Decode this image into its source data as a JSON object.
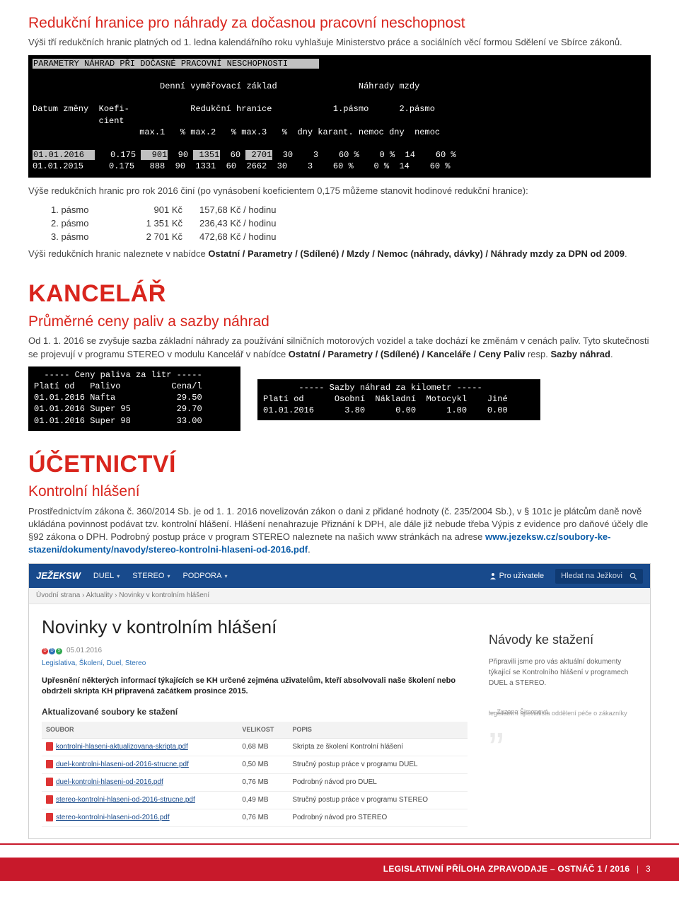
{
  "section1": {
    "heading": "Redukční hranice pro náhrady za dočasnou pracovní neschopnost",
    "intro": "Výši tří redukčních hranic platných od 1. ledna kalendářního roku vyhlašuje Ministerstvo práce a sociálních věcí formou Sdělení ve Sbírce zákonů.",
    "terminal": {
      "title": "PARAMETRY NÁHRAD PŘI DOČASNÉ PRACOVNÍ NESCHOPNOSTI",
      "group_left": "Denní vyměřovací základ",
      "group_right": "Náhrady mzdy",
      "h_datum": "Datum změny",
      "h_koef": "Koefi-\ncient",
      "h_reduk": "Redukční hranice",
      "h_p1": "1.pásmo",
      "h_p2": "2.pásmo",
      "sub_max1": "max.1",
      "sub_pct": "%",
      "sub_max2": "max.2",
      "sub_max3": "max.3",
      "sub_dnykar": "dny karant.",
      "sub_nemoc": "nemoc",
      "sub_dny": "dny",
      "rows": [
        {
          "date": "01.01.2016",
          "koef": "0.175",
          "m1": "901",
          "p1": "90",
          "m2": "1351",
          "p2": "60",
          "m3": "2701",
          "p3": "30",
          "dk": "3",
          "dkn": "60 %",
          "nm": "0 %",
          "dn": "14",
          "dnn": "60 %",
          "hl": true
        },
        {
          "date": "01.01.2015",
          "koef": "0.175",
          "m1": "888",
          "p1": "90",
          "m2": "1331",
          "p2": "60",
          "m3": "2662",
          "p3": "30",
          "dk": "3",
          "dkn": "60 %",
          "nm": "0 %",
          "dn": "14",
          "dnn": "60 %",
          "hl": false
        }
      ]
    },
    "after_term": "Výše redukčních hranic pro rok 2016 činí (po vynásobení koeficientem  0,175 můžeme stanovit hodinové redukční hranice):",
    "bands": [
      {
        "label": "1. pásmo",
        "amount": "901 Kč",
        "rate": "157,68 Kč / hodinu"
      },
      {
        "label": "2. pásmo",
        "amount": "1 351 Kč",
        "rate": "236,43 Kč / hodinu"
      },
      {
        "label": "3. pásmo",
        "amount": "2 701 Kč",
        "rate": "472,68 Kč / hodinu"
      }
    ],
    "closing_pre": "Výši redukčních hranic naleznete v nabídce ",
    "closing_bold": "Ostatní / Parametry / (Sdílené) / Mzdy / Nemoc (náhrady, dávky) / Náhrady mzdy za DPN od 2009",
    "closing_post": "."
  },
  "section2": {
    "title": "KANCELÁŘ",
    "subheading": "Průměrné ceny paliv a sazby náhrad",
    "p_pre": "Od 1. 1. 2016 se zvyšuje sazba základní náhrady za používání silničních motorových vozidel a take dochází ke změnám v cenách paliv. Tyto skutečnosti se projevují v programu STEREO v modulu Kancelář v nabídce ",
    "p_bold": "Ostatní / Parametry / (Sdílené) / Kanceláře / Ceny Paliv",
    "p_mid": " resp. ",
    "p_bold2": "Sazby náhrad",
    "p_post": ".",
    "fuel": {
      "title": "Ceny paliva za litr",
      "h1": "Platí od",
      "h2": "Palivo",
      "h3": "Cena/l",
      "rows": [
        {
          "d": "01.01.2016",
          "f": "Nafta",
          "c": "29.50"
        },
        {
          "d": "01.01.2016",
          "f": "Super 95",
          "c": "29.70"
        },
        {
          "d": "01.01.2016",
          "f": "Super 98",
          "c": "33.00"
        }
      ]
    },
    "rates": {
      "title": "Sazby náhrad za kilometr",
      "h1": "Platí od",
      "h2": "Osobní",
      "h3": "Nákladní",
      "h4": "Motocykl",
      "h5": "Jiné",
      "row": {
        "d": "01.01.2016",
        "os": "3.80",
        "na": "0.00",
        "mo": "1.00",
        "ji": "0.00"
      }
    }
  },
  "section3": {
    "title": "ÚČETNICTVÍ",
    "subheading": "Kontrolní hlášení",
    "p_pre": "Prostřednictvím zákona č. 360/2014 Sb. je od 1. 1. 2016 novelizován zákon o dani z přidané hodnoty (č. 235/2004 Sb.), v § 101c je plátcům daně nově ukládána povinnost podávat tzv. kontrolní hlášení. Hlášení nenahrazuje Přiznání k DPH, ale dále již nebude třeba Výpis z evidence pro daňové účely dle §92 zákona  o DPH. Podrobný postup práce v program STEREO naleznete na našich www stránkách na adrese  ",
    "p_link": "www.jezeksw.cz/soubory-ke-stazeni/dokumenty/navody/stereo-kontrolni-hlaseni-od-2016.pdf",
    "p_post": "."
  },
  "webshot": {
    "logo": "JEŽEKSW",
    "nav": [
      "DUEL",
      "STEREO",
      "PODPORA"
    ],
    "user_link": "Pro uživatele",
    "search_placeholder": "Hledat na Ježkovi",
    "breadcrumb": "Úvodní strana   ›   Aktuality   ›   Novinky v kontrolním hlášení",
    "article_title": "Novinky v kontrolním hlášení",
    "date": "05.01.2016",
    "tags": "Legislativa, Školení, Duel, Stereo",
    "lead": "Upřesnění některých informací týkajících se KH určené zejména uživatelům, kteří absolvovali naše školení nebo obdrželi skripta KH připravená začátkem prosince 2015.",
    "dl_heading": "Aktualizované soubory ke stažení",
    "table": {
      "h1": "SOUBOR",
      "h2": "VELIKOST",
      "h3": "POPIS",
      "rows": [
        {
          "f": "kontrolni-hlaseni-aktualizovana-skripta.pdf",
          "s": "0,68 MB",
          "d": "Skripta ze školení Kontrolní hlášení"
        },
        {
          "f": "duel-kontrolni-hlaseni-od-2016-strucne.pdf",
          "s": "0,50 MB",
          "d": "Stručný postup práce v programu DUEL"
        },
        {
          "f": "duel-kontrolni-hlaseni-od-2016.pdf",
          "s": "0,76 MB",
          "d": "Podrobný návod pro DUEL"
        },
        {
          "f": "stereo-kontrolni-hlaseni-od-2016-strucne.pdf",
          "s": "0,49 MB",
          "d": "Stručný postup práce v programu STEREO"
        },
        {
          "f": "stereo-kontrolni-hlaseni-od-2016.pdf",
          "s": "0,76 MB",
          "d": "Podrobný návod pro STEREO"
        }
      ]
    },
    "right": {
      "title": "Návody ke stažení",
      "body": "Připravili jsme pro vás aktuální dokumenty týkající se Kontrolního hlášení v programech DUEL a STEREO.",
      "sig1": "— Zuzana Šimonová",
      "sig2": "legislativní specialista oddělení péče o zákazníky"
    }
  },
  "footer": {
    "text": "LEGISLATIVNÍ PŘÍLOHA ZPRAVODAJE – OSTNÁČ 1 / 2016",
    "page": "3"
  }
}
